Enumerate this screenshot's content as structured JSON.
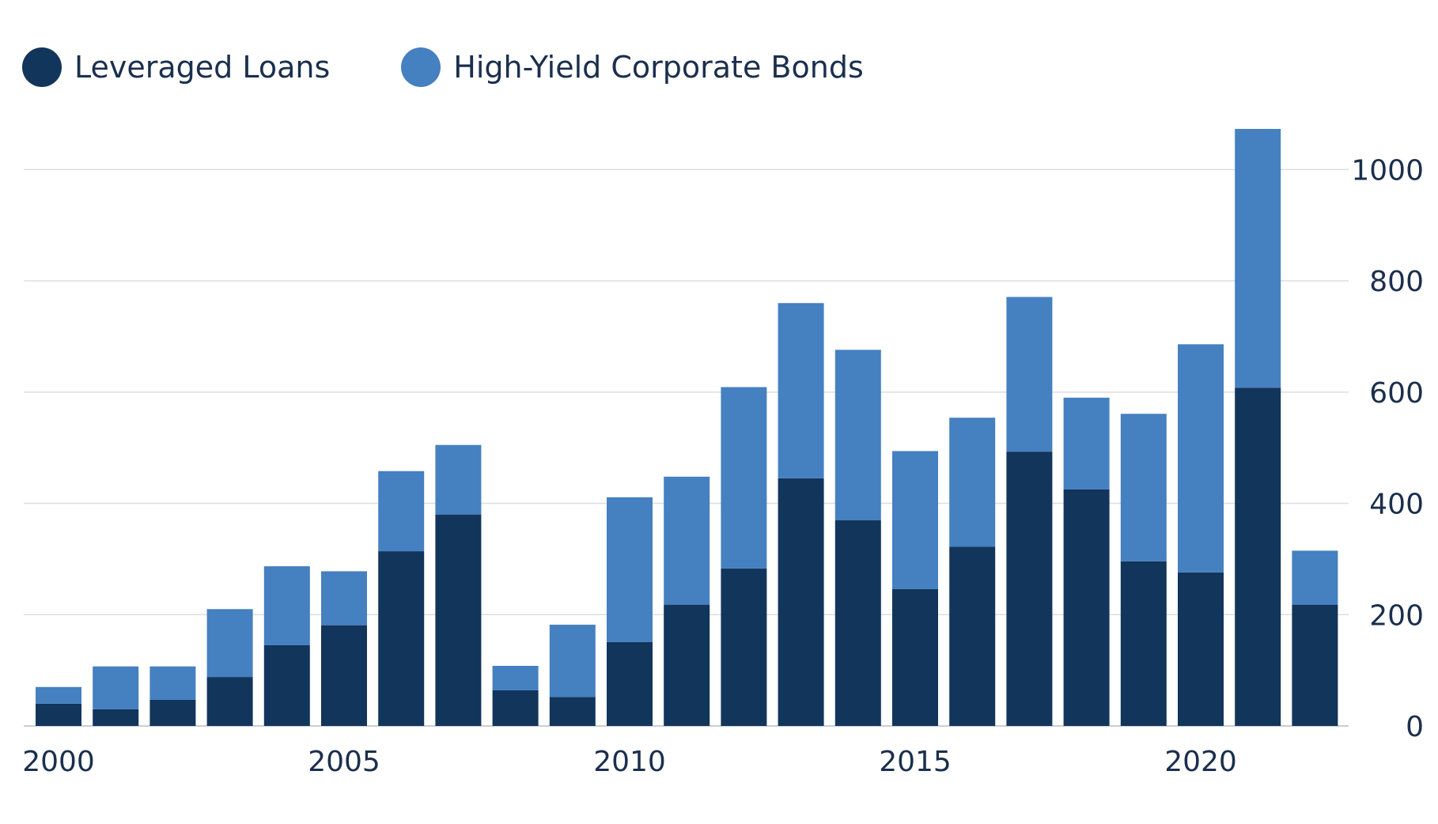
{
  "colors": {
    "leveraged_loans": "#12355b",
    "high_yield_bonds": "#4580c1",
    "gridline": "#d9dde3",
    "text": "#1b2f4d"
  },
  "legend": [
    {
      "label": "Leveraged Loans",
      "color": "#12355b"
    },
    {
      "label": "High-Yield Corporate Bonds",
      "color": "#4580c1"
    }
  ],
  "chart_data": {
    "type": "bar",
    "stacked": true,
    "title": "",
    "xlabel": "",
    "ylabel": "",
    "categories": [
      "2000",
      "2001",
      "2002",
      "2003",
      "2004",
      "2005",
      "2006",
      "2007",
      "2008",
      "2009",
      "2010",
      "2011",
      "2012",
      "2013",
      "2014",
      "2015",
      "2016",
      "2017",
      "2018",
      "2019",
      "2020",
      "2021",
      "2022"
    ],
    "series": [
      {
        "name": "Leveraged Loans",
        "color": "#12355b",
        "values": [
          40,
          30,
          47,
          88,
          145,
          181,
          314,
          380,
          64,
          52,
          151,
          218,
          283,
          445,
          370,
          246,
          322,
          493,
          425,
          296,
          276,
          608,
          218
        ]
      },
      {
        "name": "High-Yield Corporate Bonds",
        "color": "#4580c1",
        "values": [
          30,
          77,
          60,
          122,
          142,
          97,
          144,
          125,
          44,
          130,
          260,
          230,
          326,
          315,
          306,
          248,
          232,
          278,
          165,
          265,
          410,
          465,
          97
        ]
      }
    ],
    "x_tick_labels": [
      "2000",
      "2005",
      "2010",
      "2015",
      "2020"
    ],
    "y_ticks": [
      0,
      200,
      400,
      600,
      800,
      1000
    ],
    "ylim": [
      0,
      1080
    ],
    "y_axis_position": "right",
    "grid": true,
    "legend_position": "top-left"
  }
}
